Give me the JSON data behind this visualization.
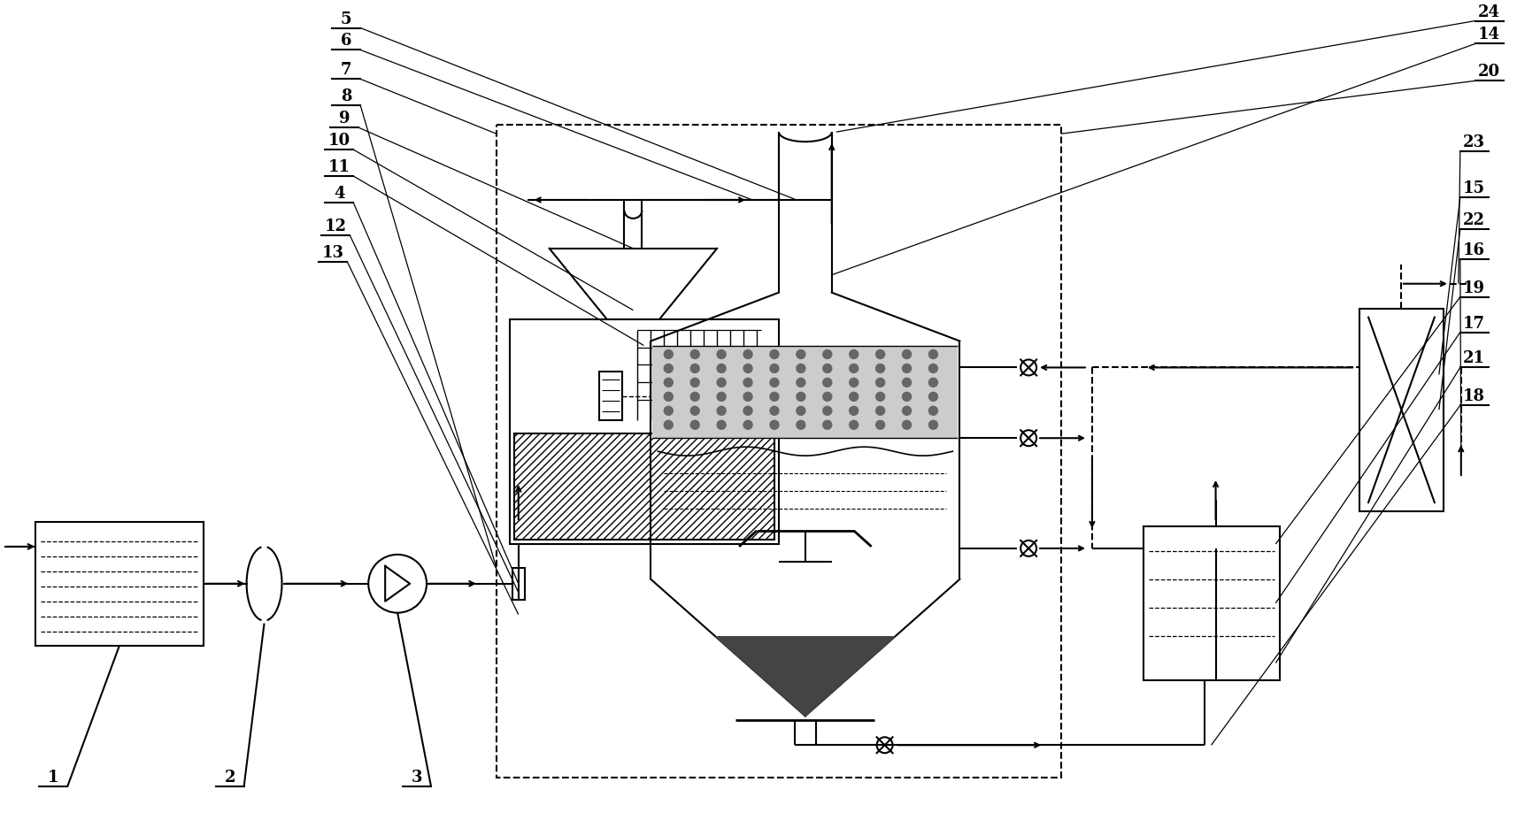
{
  "figsize": [
    17.14,
    9.37
  ],
  "dpi": 100,
  "bg": "#ffffff",
  "lc": "#000000",
  "left_labels": [
    [
      "5",
      390,
      30
    ],
    [
      "6",
      390,
      55
    ],
    [
      "7",
      390,
      88
    ],
    [
      "8",
      390,
      118
    ],
    [
      "9",
      388,
      143
    ],
    [
      "10",
      382,
      168
    ],
    [
      "11",
      382,
      198
    ],
    [
      "4",
      382,
      228
    ],
    [
      "12",
      378,
      265
    ],
    [
      "13",
      375,
      295
    ]
  ],
  "right_labels": [
    [
      "24",
      1685,
      22
    ],
    [
      "14",
      1685,
      48
    ],
    [
      "20",
      1685,
      90
    ],
    [
      "23",
      1668,
      170
    ],
    [
      "15",
      1668,
      222
    ],
    [
      "22",
      1668,
      258
    ],
    [
      "16",
      1668,
      292
    ],
    [
      "19",
      1668,
      335
    ],
    [
      "17",
      1668,
      375
    ],
    [
      "21",
      1668,
      415
    ],
    [
      "18",
      1668,
      458
    ]
  ],
  "bottom_label": [
    "1",
    55,
    875
  ],
  "bottom_label2": [
    "2",
    252,
    875
  ],
  "bottom_label3": [
    "3",
    468,
    875
  ]
}
